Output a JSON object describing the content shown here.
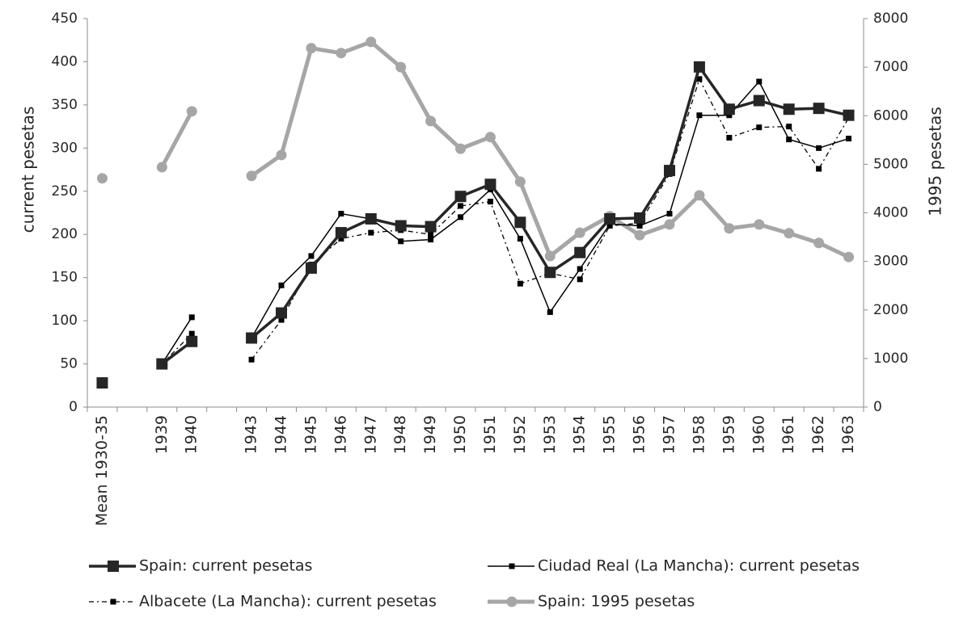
{
  "chart_data": {
    "type": "line",
    "categories": [
      "Mean 1930-35",
      null,
      "1939",
      "1940",
      null,
      "1943",
      "1944",
      "1945",
      "1946",
      "1947",
      "1948",
      "1949",
      "1950",
      "1951",
      "1952",
      "1953",
      "1954",
      "1955",
      "1956",
      "1957",
      "1958",
      "1959",
      "1960",
      "1961",
      "1962",
      "1963"
    ],
    "ylabel": "current pesetas",
    "y2label": "1995 pesetas",
    "ylim": [
      0,
      450
    ],
    "yticks": [
      0,
      50,
      100,
      150,
      200,
      250,
      300,
      350,
      400,
      450
    ],
    "y2lim": [
      0,
      8000
    ],
    "y2ticks": [
      0,
      1000,
      2000,
      3000,
      4000,
      5000,
      6000,
      7000,
      8000
    ],
    "series": [
      {
        "name": "Spain: current pesetas",
        "color": "#262626",
        "values": [
          28,
          null,
          50,
          76,
          null,
          80,
          109,
          161,
          202,
          218,
          210,
          209,
          244,
          258,
          214,
          156,
          179,
          218,
          219,
          274,
          394,
          345,
          355,
          345,
          346,
          338
        ]
      },
      {
        "name": "Ciudad Real (La Mancha): current pesetas",
        "color": "#000000",
        "values": [
          null,
          null,
          50,
          104,
          null,
          80,
          141,
          175,
          224,
          218,
          192,
          194,
          220,
          252,
          195,
          110,
          160,
          212,
          210,
          224,
          338,
          338,
          377,
          310,
          300,
          311
        ]
      },
      {
        "name": "Albacete (La Mancha): current pesetas",
        "color": "#000000",
        "values": [
          null,
          null,
          50,
          85,
          null,
          55,
          101,
          165,
          195,
          202,
          205,
          200,
          233,
          238,
          143,
          155,
          148,
          210,
          213,
          270,
          380,
          312,
          324,
          325,
          276,
          335
        ]
      },
      {
        "name": "Spain: 1995 pesetas",
        "color": "#a6a6a6",
        "axis": "y2",
        "values": [
          4710,
          null,
          4940,
          6090,
          null,
          4760,
          5190,
          7390,
          7290,
          7520,
          7000,
          5890,
          5320,
          5560,
          4640,
          3110,
          3590,
          3930,
          3540,
          3760,
          4360,
          3680,
          3760,
          3580,
          3380,
          3090
        ]
      }
    ]
  }
}
